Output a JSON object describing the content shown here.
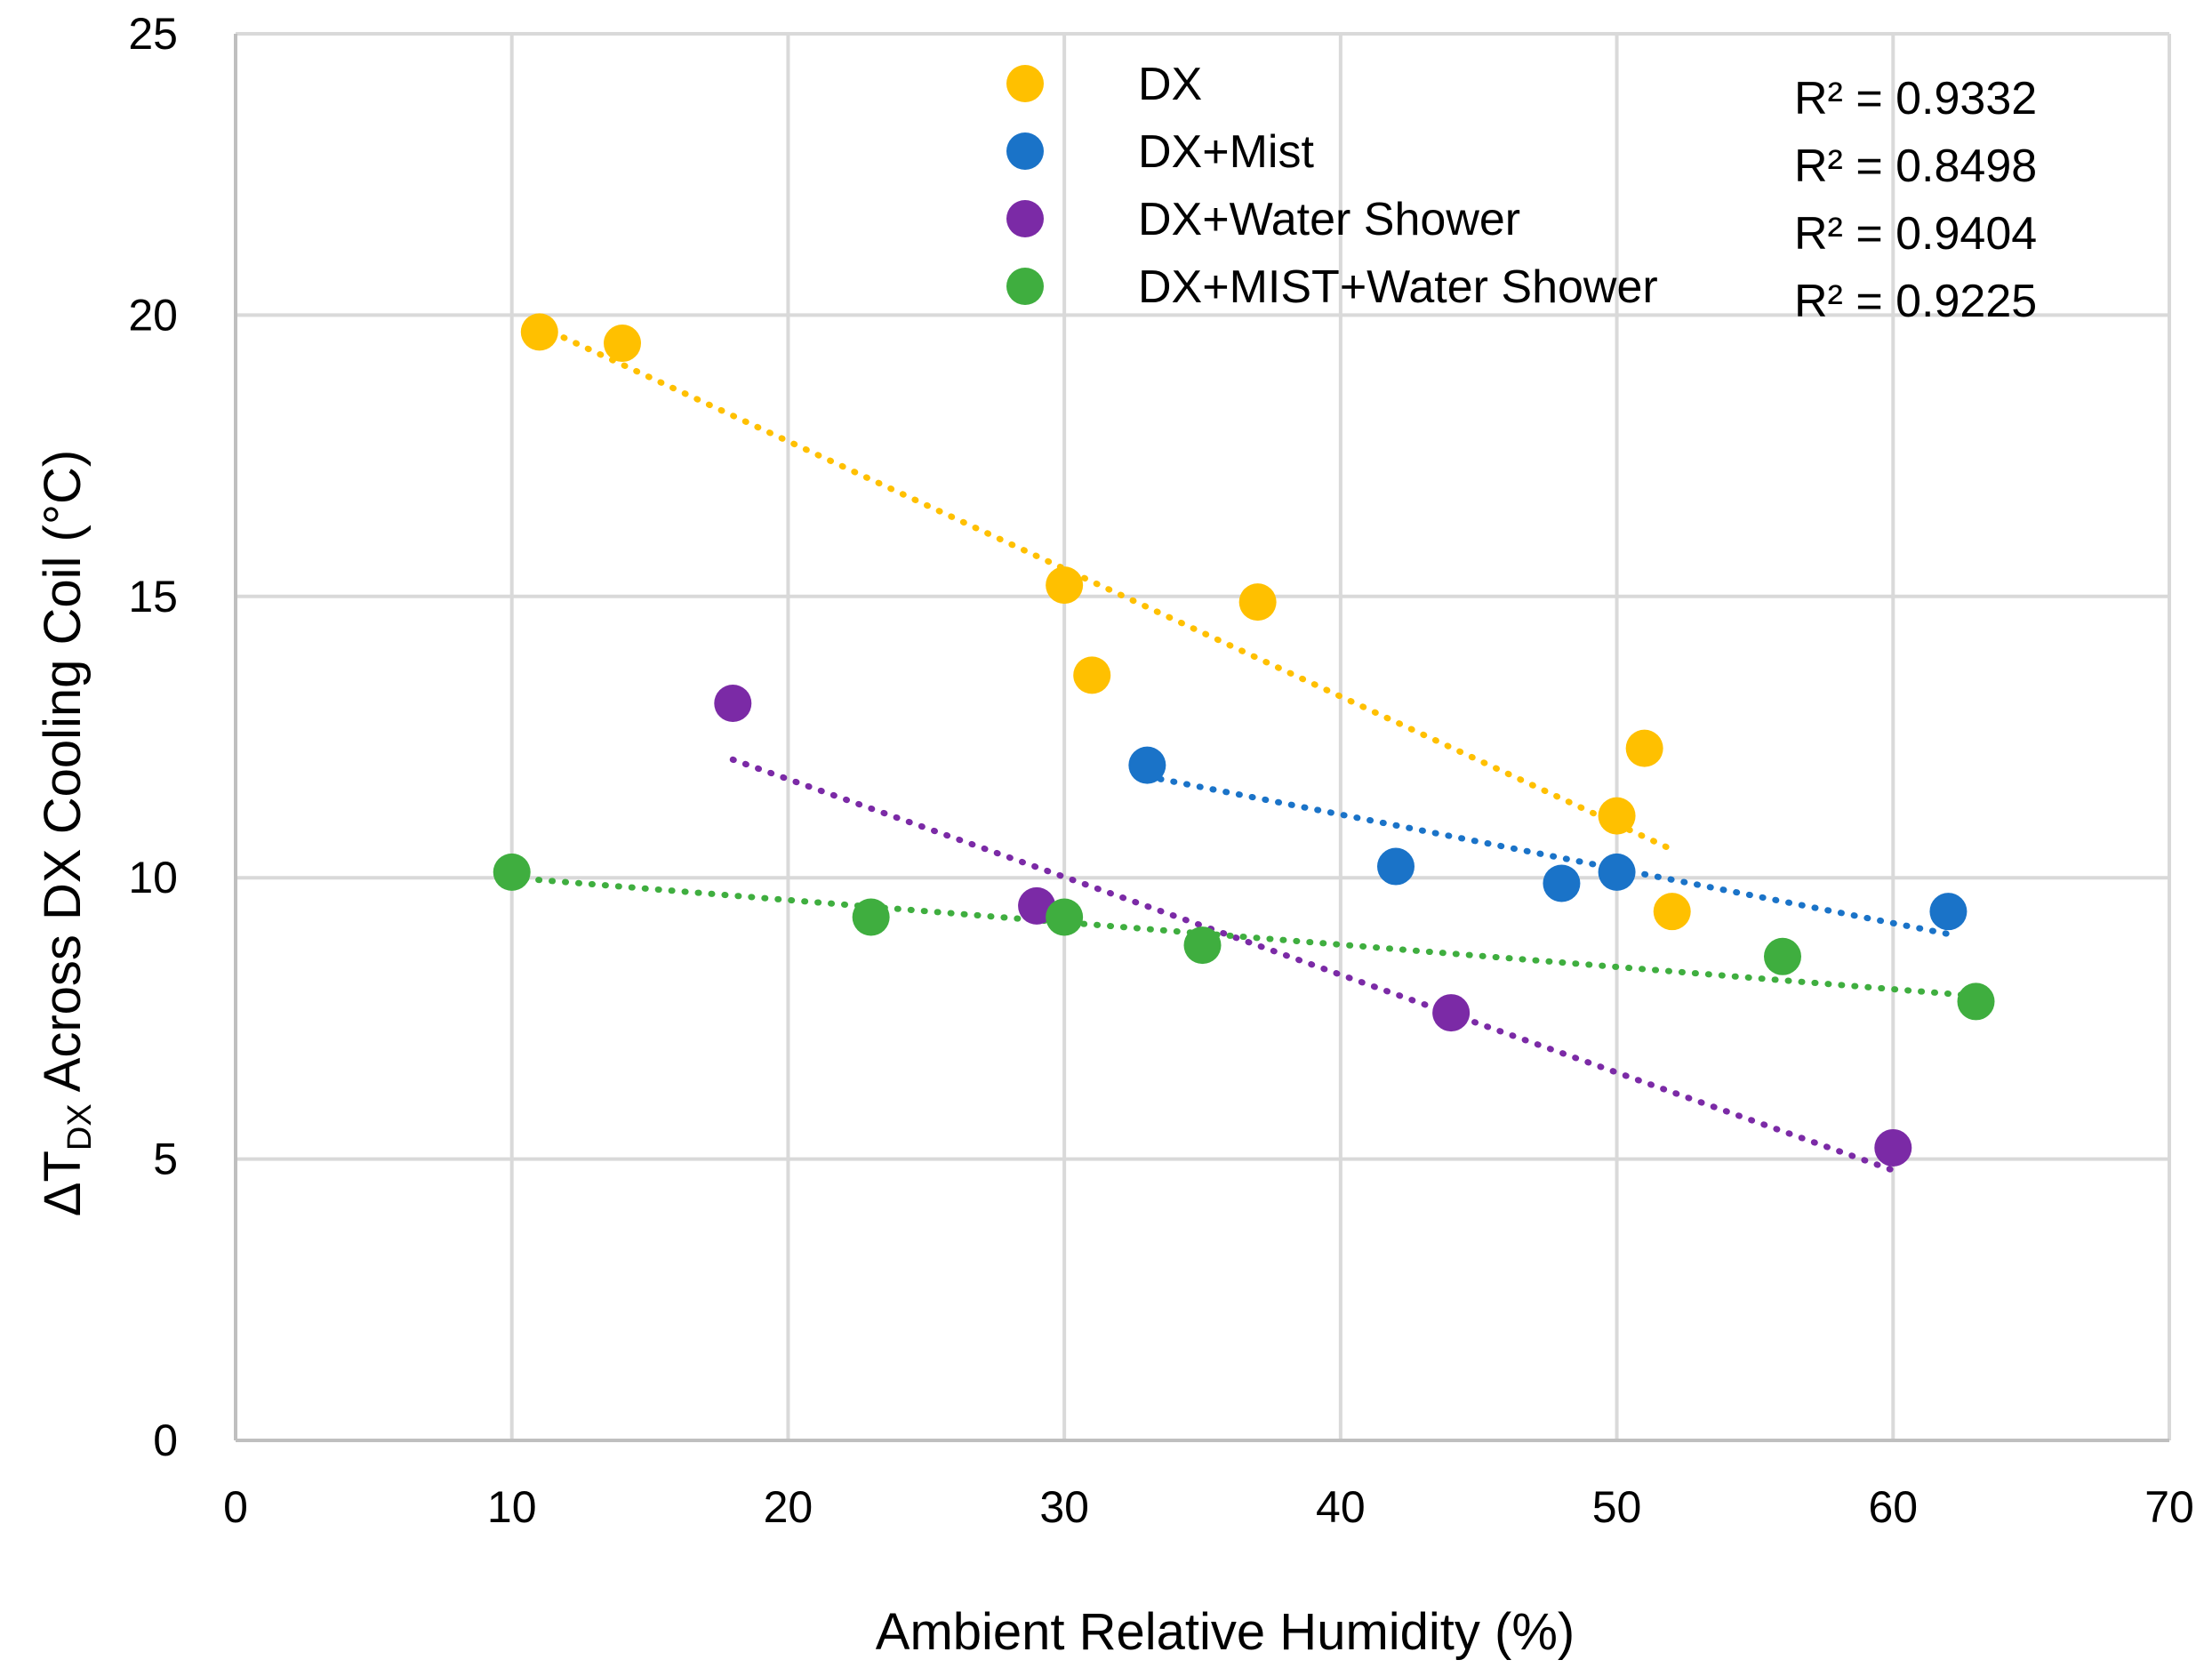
{
  "chart_data": {
    "type": "scatter",
    "title": "",
    "xlabel": "Ambient Relative Humidity (%)",
    "ylabel": {
      "prefix": "ΔT",
      "subscript": "DX",
      "suffix": " Across DX Cooling Coil (°C)"
    },
    "xlim": [
      0,
      70
    ],
    "ylim": [
      0,
      25
    ],
    "xticks": [
      "0",
      "10",
      "20",
      "30",
      "40",
      "50",
      "60",
      "70"
    ],
    "yticks": [
      "0",
      "5",
      "10",
      "15",
      "20",
      "25"
    ],
    "grid": true,
    "legend_position": "top-center",
    "series": [
      {
        "name": "DX",
        "color": "#FFC000",
        "r2": "R² = 0.9332",
        "trendline": {
          "x": [
            11,
            52
          ],
          "y": [
            19.8,
            10.5
          ]
        },
        "points": [
          [
            11,
            19.7
          ],
          [
            14,
            19.5
          ],
          [
            30,
            15.2
          ],
          [
            31,
            13.6
          ],
          [
            37,
            14.9
          ],
          [
            50,
            11.1
          ],
          [
            51,
            12.3
          ],
          [
            52,
            9.4
          ]
        ]
      },
      {
        "name": "DX+Mist",
        "color": "#1A73C8",
        "r2": "R² = 0.8498",
        "trendline": {
          "x": [
            33,
            62
          ],
          "y": [
            11.8,
            9.0
          ]
        },
        "points": [
          [
            33,
            12.0
          ],
          [
            42,
            10.2
          ],
          [
            48,
            9.9
          ],
          [
            50,
            10.1
          ],
          [
            62,
            9.4
          ]
        ]
      },
      {
        "name": "DX+Water Shower",
        "color": "#7B2AA6",
        "r2": "R² = 0.9404",
        "trendline": {
          "x": [
            18,
            60
          ],
          "y": [
            12.1,
            4.8
          ]
        },
        "points": [
          [
            18,
            13.1
          ],
          [
            29,
            9.5
          ],
          [
            44,
            7.6
          ],
          [
            60,
            5.2
          ]
        ]
      },
      {
        "name": "DX+MIST+Water Shower",
        "color": "#3FAE3F",
        "r2": "R² = 0.9225",
        "trendline": {
          "x": [
            10,
            63
          ],
          "y": [
            10.0,
            7.9
          ]
        },
        "points": [
          [
            10,
            10.1
          ],
          [
            23,
            9.3
          ],
          [
            30,
            9.3
          ],
          [
            35,
            8.8
          ],
          [
            56,
            8.6
          ],
          [
            63,
            7.8
          ]
        ]
      }
    ]
  }
}
